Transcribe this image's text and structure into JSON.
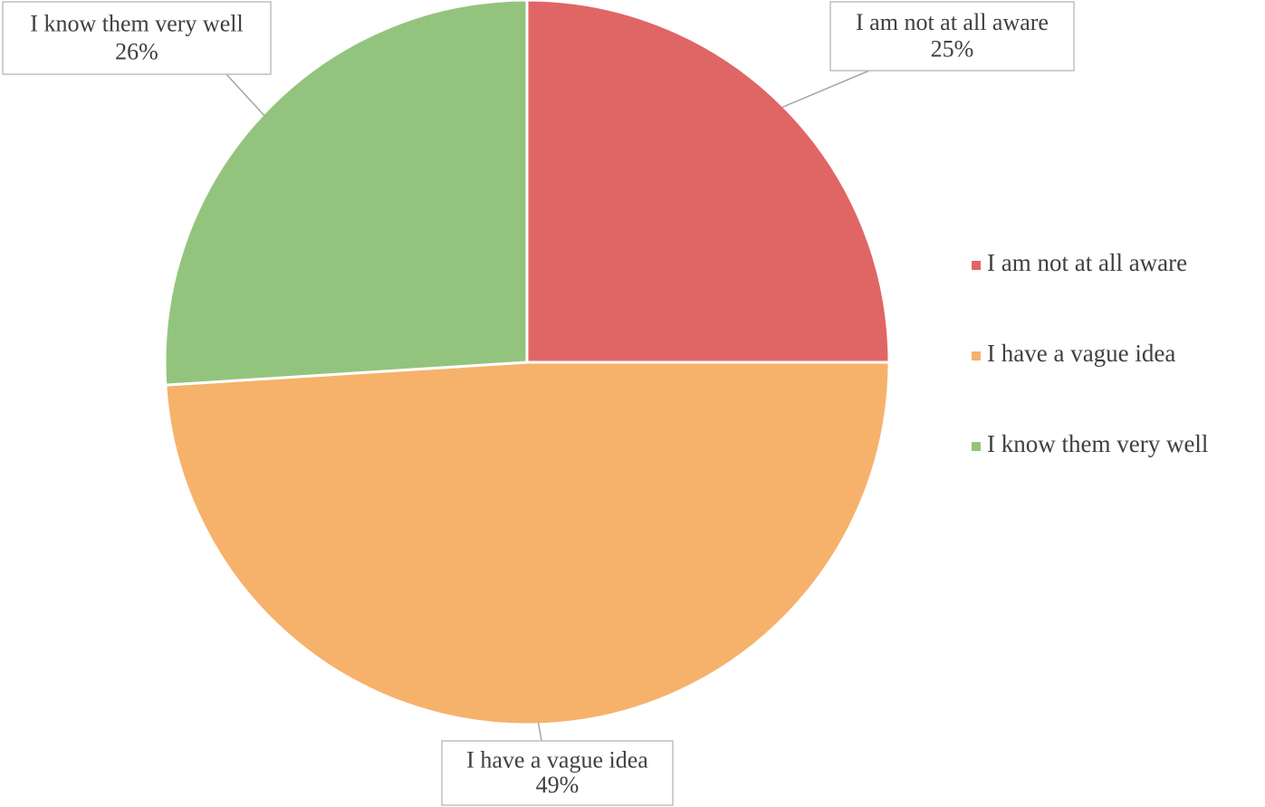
{
  "chart_data": {
    "type": "pie",
    "categories": [
      "I am not at all aware",
      "I have a vague idea",
      "I know them very well"
    ],
    "values": [
      25,
      49,
      26
    ],
    "value_labels": [
      "25%",
      "49%",
      "26%"
    ],
    "colors": [
      "#e06666",
      "#f6b26b",
      "#93c47d"
    ],
    "legend": "right"
  }
}
